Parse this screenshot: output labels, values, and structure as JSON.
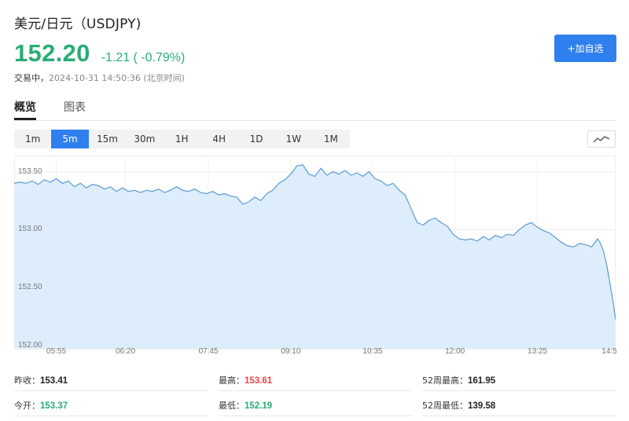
{
  "header": {
    "title": "美元/日元（USDJPY)",
    "price": "152.20",
    "change": "-1.21 ( -0.79%)",
    "status_state": "交易中，",
    "status_time": "2024-10-31 14:50:36 (北京时间)",
    "add_button": "+加自选"
  },
  "tabs": [
    "概览",
    "图表"
  ],
  "periods": [
    "1m",
    "5m",
    "15m",
    "30m",
    "1H",
    "4H",
    "1D",
    "1W",
    "1M"
  ],
  "active_period": "5m",
  "stats": {
    "prev_close_label": "昨收：",
    "prev_close": "153.41",
    "high_label": "最高：",
    "high": "153.61",
    "high52_label": "52周最高：",
    "high52": "161.95",
    "open_label": "今开：",
    "open": "153.37",
    "low_label": "最低：",
    "low": "152.19",
    "low52_label": "52周最低：",
    "low52": "139.58"
  },
  "colors": {
    "up": "#29ad75",
    "down": "#e84545",
    "accent": "#2f80ee",
    "line": "#5b9bd5",
    "fill": "#deedfb"
  },
  "chart_data": {
    "type": "area",
    "ylabels": [
      "153.50",
      "153.00",
      "152.50",
      "152.00"
    ],
    "y_ticks": [
      153.5,
      153.0,
      152.5,
      152.0
    ],
    "ylim": [
      151.97,
      153.64
    ],
    "xlabels": [
      "05:55",
      "06:20",
      "07:45",
      "09:10",
      "10:35",
      "12:00",
      "13:25",
      "14:5"
    ],
    "x_ticks": [
      0.07,
      0.185,
      0.323,
      0.46,
      0.596,
      0.733,
      0.87,
      1.0
    ],
    "grid": true,
    "series": [
      {
        "x": [
          0.0,
          0.01,
          0.02,
          0.03,
          0.04,
          0.05,
          0.06,
          0.07,
          0.08,
          0.09,
          0.1,
          0.11,
          0.12,
          0.13,
          0.14,
          0.15,
          0.16,
          0.17,
          0.18,
          0.19,
          0.2,
          0.21,
          0.22,
          0.23,
          0.24,
          0.25,
          0.26,
          0.27,
          0.28,
          0.29,
          0.3,
          0.31,
          0.32,
          0.33,
          0.34,
          0.35,
          0.36,
          0.37,
          0.38,
          0.39,
          0.4,
          0.41,
          0.42,
          0.43,
          0.44,
          0.45,
          0.46,
          0.47,
          0.48,
          0.49,
          0.5,
          0.51,
          0.52,
          0.53,
          0.54,
          0.55,
          0.56,
          0.57,
          0.58,
          0.59,
          0.6,
          0.61,
          0.62,
          0.63,
          0.64,
          0.65,
          0.66,
          0.67,
          0.68,
          0.69,
          0.7,
          0.71,
          0.72,
          0.73,
          0.74,
          0.75,
          0.76,
          0.77,
          0.78,
          0.79,
          0.8,
          0.81,
          0.82,
          0.83,
          0.84,
          0.85,
          0.86,
          0.87,
          0.88,
          0.89,
          0.9,
          0.91,
          0.92,
          0.93,
          0.94,
          0.95,
          0.96,
          0.97,
          0.975,
          0.98,
          0.985,
          0.99,
          0.995,
          1.0
        ],
        "y": [
          153.4,
          153.41,
          153.4,
          153.42,
          153.39,
          153.43,
          153.41,
          153.44,
          153.4,
          153.42,
          153.37,
          153.4,
          153.36,
          153.39,
          153.38,
          153.35,
          153.37,
          153.33,
          153.36,
          153.33,
          153.34,
          153.32,
          153.34,
          153.33,
          153.35,
          153.32,
          153.34,
          153.37,
          153.34,
          153.33,
          153.35,
          153.32,
          153.31,
          153.33,
          153.3,
          153.31,
          153.29,
          153.28,
          153.22,
          153.24,
          153.28,
          153.25,
          153.31,
          153.34,
          153.4,
          153.43,
          153.48,
          153.55,
          153.56,
          153.48,
          153.46,
          153.53,
          153.47,
          153.5,
          153.48,
          153.51,
          153.47,
          153.49,
          153.46,
          153.5,
          153.44,
          153.42,
          153.38,
          153.4,
          153.34,
          153.3,
          153.18,
          153.06,
          153.04,
          153.08,
          153.1,
          153.06,
          153.03,
          152.96,
          152.92,
          152.91,
          152.92,
          152.9,
          152.94,
          152.91,
          152.95,
          152.93,
          152.96,
          152.95,
          153.0,
          153.04,
          153.06,
          153.02,
          152.99,
          152.97,
          152.93,
          152.89,
          152.86,
          152.85,
          152.88,
          152.87,
          152.85,
          152.92,
          152.88,
          152.81,
          152.7,
          152.55,
          152.4,
          152.22
        ]
      }
    ]
  }
}
